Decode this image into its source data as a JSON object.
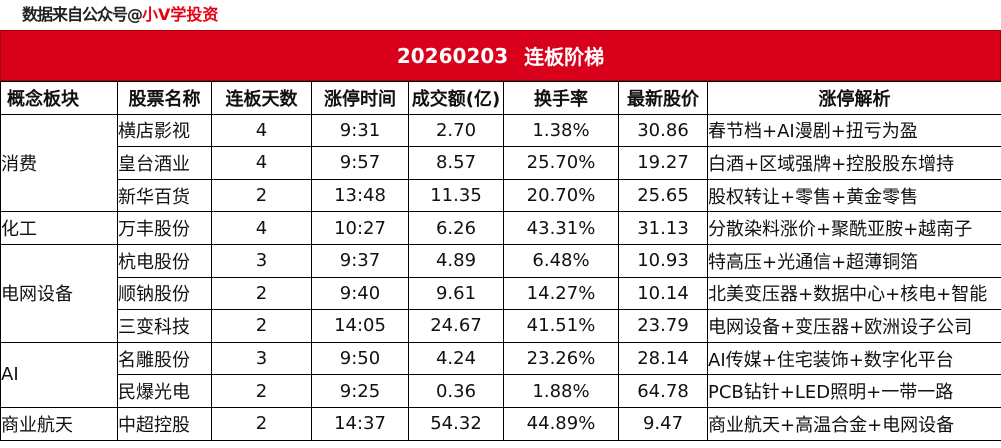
{
  "source": {
    "prefix": "数据来自公众号@",
    "name": "小V学投资"
  },
  "title": {
    "date": "20260203",
    "label": "连板阶梯"
  },
  "table": {
    "headers": [
      "概念板块",
      "股票名称",
      "连板天数",
      "涨停时间",
      "成交额(亿)",
      "换手率",
      "最新股价",
      "涨停解析"
    ],
    "groups": [
      {
        "category": "消费",
        "rows": [
          {
            "name": "横店影视",
            "days": "4",
            "time": "9:31",
            "amount": "2.70",
            "turnover": "1.38%",
            "price": "30.86",
            "reason": "春节档+AI漫剧+扭亏为盈"
          },
          {
            "name": "皇台酒业",
            "days": "4",
            "time": "9:57",
            "amount": "8.57",
            "turnover": "25.70%",
            "price": "19.27",
            "reason": "白酒+区域强牌+控股股东增持"
          },
          {
            "name": "新华百货",
            "days": "2",
            "time": "13:48",
            "amount": "11.35",
            "turnover": "20.70%",
            "price": "25.65",
            "reason": "股权转让+零售+黄金零售"
          }
        ]
      },
      {
        "category": "化工",
        "rows": [
          {
            "name": "万丰股份",
            "days": "4",
            "time": "10:27",
            "amount": "6.26",
            "turnover": "43.31%",
            "price": "31.13",
            "reason": "分散染料涨价+聚酰亚胺+越南子"
          }
        ]
      },
      {
        "category": "电网设备",
        "rows": [
          {
            "name": "杭电股份",
            "days": "3",
            "time": "9:37",
            "amount": "4.89",
            "turnover": "6.48%",
            "price": "10.93",
            "reason": "特高压+光通信+超薄铜箔"
          },
          {
            "name": "顺钠股份",
            "days": "2",
            "time": "9:40",
            "amount": "9.61",
            "turnover": "14.27%",
            "price": "10.14",
            "reason": "北美变压器+数据中心+核电+智能"
          },
          {
            "name": "三变科技",
            "days": "2",
            "time": "14:05",
            "amount": "24.67",
            "turnover": "41.51%",
            "price": "23.79",
            "reason": "电网设备+变压器+欧洲设子公司"
          }
        ]
      },
      {
        "category": "AI",
        "rows": [
          {
            "name": "名雕股份",
            "days": "3",
            "time": "9:50",
            "amount": "4.24",
            "turnover": "23.26%",
            "price": "28.14",
            "reason": "AI传媒+住宅装饰+数字化平台"
          },
          {
            "name": "民爆光电",
            "days": "2",
            "time": "9:25",
            "amount": "0.36",
            "turnover": "1.88%",
            "price": "64.78",
            "reason": "PCB钻针+LED照明+一带一路"
          }
        ]
      },
      {
        "category": "商业航天",
        "rows": [
          {
            "name": "中超控股",
            "days": "2",
            "time": "14:37",
            "amount": "54.32",
            "turnover": "44.89%",
            "price": "9.47",
            "reason": "商业航天+高温合金+电网设备"
          }
        ]
      }
    ]
  },
  "colors": {
    "title_bg": "#d9001b",
    "title_text": "#ffffff",
    "source_name": "#e60012",
    "border": "#000000"
  }
}
